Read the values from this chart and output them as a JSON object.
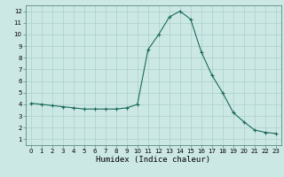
{
  "x": [
    0,
    1,
    2,
    3,
    4,
    5,
    6,
    7,
    8,
    9,
    10,
    11,
    12,
    13,
    14,
    15,
    16,
    17,
    18,
    19,
    20,
    21,
    22,
    23
  ],
  "y": [
    4.1,
    4.0,
    3.9,
    3.8,
    3.7,
    3.6,
    3.6,
    3.6,
    3.6,
    3.7,
    4.0,
    8.7,
    10.0,
    11.5,
    12.0,
    11.3,
    8.5,
    6.5,
    5.0,
    3.3,
    2.5,
    1.8,
    1.6,
    1.5
  ],
  "xlabel": "Humidex (Indice chaleur)",
  "xlim": [
    -0.5,
    23.5
  ],
  "ylim": [
    0.5,
    12.5
  ],
  "yticks": [
    1,
    2,
    3,
    4,
    5,
    6,
    7,
    8,
    9,
    10,
    11,
    12
  ],
  "xticks": [
    0,
    1,
    2,
    3,
    4,
    5,
    6,
    7,
    8,
    9,
    10,
    11,
    12,
    13,
    14,
    15,
    16,
    17,
    18,
    19,
    20,
    21,
    22,
    23
  ],
  "line_color": "#1a6b5a",
  "marker": "+",
  "bg_color": "#cce8e5",
  "grid_color": "#aacfcc",
  "border_color": "#5a8a80",
  "xlabel_fontsize": 6.5,
  "tick_fontsize": 5.0
}
